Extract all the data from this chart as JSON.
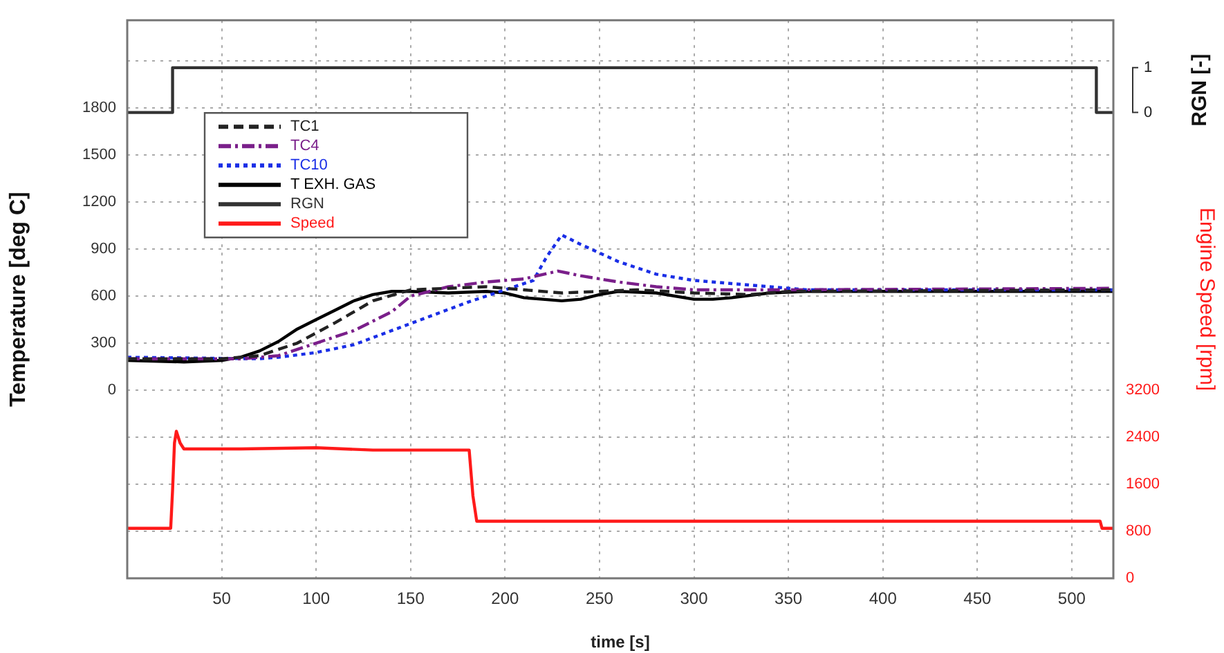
{
  "chart_data": {
    "type": "line",
    "xlabel": "time [s]",
    "ylabel": "Temperature [deg C]",
    "y2label": "Engine Speed [rpm]",
    "y3label": "RGN [-]",
    "xlim": [
      0,
      522
    ],
    "xticks": [
      50,
      100,
      150,
      200,
      250,
      300,
      350,
      400,
      450,
      500
    ],
    "ylim": [
      -1200,
      2360
    ],
    "yticks": [
      {
        "value": -900,
        "label": null
      },
      {
        "value": -600,
        "label": null
      },
      {
        "value": -300,
        "label": null
      },
      0,
      300,
      600,
      900,
      1200,
      1500,
      1800,
      {
        "value": 2100,
        "label": null
      }
    ],
    "y2lim": [
      0,
      9490
    ],
    "y2ticks": [
      0,
      800,
      1600,
      2400,
      3200
    ],
    "y3lim": [
      -10.4,
      2.06
    ],
    "y3ticks": [
      0,
      1
    ],
    "grid": true,
    "legend": "top left",
    "series": [
      {
        "name": "TC1",
        "color": "#222222",
        "line_style": "dashed",
        "x": [
          0,
          50,
          70,
          90,
          110,
          130,
          150,
          170,
          190,
          210,
          230,
          250,
          270,
          300,
          330,
          350,
          522
        ],
        "values": [
          200,
          200,
          220,
          300,
          430,
          570,
          640,
          650,
          660,
          640,
          620,
          630,
          640,
          620,
          610,
          630,
          640
        ]
      },
      {
        "name": "TC4",
        "color": "#7a1f8a",
        "line_style": "dashdot",
        "x": [
          0,
          60,
          80,
          100,
          120,
          140,
          150,
          170,
          190,
          210,
          228,
          240,
          260,
          280,
          300,
          350,
          522
        ],
        "values": [
          200,
          200,
          220,
          300,
          380,
          500,
          600,
          660,
          690,
          710,
          760,
          730,
          690,
          660,
          640,
          640,
          650
        ]
      },
      {
        "name": "TC10",
        "color": "#1a2ee6",
        "line_style": "dotted",
        "x": [
          0,
          70,
          80,
          100,
          120,
          140,
          160,
          180,
          200,
          215,
          222,
          230,
          240,
          260,
          280,
          300,
          320,
          340,
          360,
          522
        ],
        "values": [
          210,
          200,
          210,
          240,
          290,
          380,
          470,
          560,
          640,
          700,
          850,
          990,
          930,
          820,
          740,
          700,
          680,
          660,
          640,
          640
        ]
      },
      {
        "name": "T EXH. GAS",
        "color": "#000000",
        "line_style": "solid",
        "x": [
          0,
          30,
          50,
          60,
          70,
          80,
          90,
          100,
          110,
          120,
          130,
          140,
          150,
          170,
          190,
          200,
          210,
          220,
          230,
          240,
          250,
          260,
          280,
          300,
          310,
          320,
          340,
          360,
          522
        ],
        "values": [
          190,
          180,
          190,
          210,
          250,
          310,
          390,
          450,
          510,
          570,
          610,
          630,
          630,
          620,
          630,
          620,
          590,
          580,
          570,
          580,
          610,
          630,
          620,
          580,
          580,
          590,
          620,
          630,
          630
        ]
      },
      {
        "name": "RGN",
        "type": "step",
        "axis": "y3",
        "color": "#333333",
        "line_style": "solid",
        "x": [
          0,
          24,
          513,
          522
        ],
        "values": [
          0,
          1,
          0,
          0
        ]
      },
      {
        "name": "Speed",
        "axis": "y2",
        "color": "#ff1a1a",
        "line_style": "solid",
        "x": [
          0,
          10,
          23,
          24,
          25,
          26,
          27,
          28,
          30,
          60,
          100,
          130,
          150,
          181,
          183,
          185,
          300,
          515,
          516,
          522
        ],
        "values": [
          850,
          850,
          850,
          1500,
          2300,
          2500,
          2400,
          2300,
          2200,
          2200,
          2220,
          2180,
          2180,
          2180,
          1400,
          970,
          970,
          970,
          850,
          850
        ]
      }
    ]
  }
}
